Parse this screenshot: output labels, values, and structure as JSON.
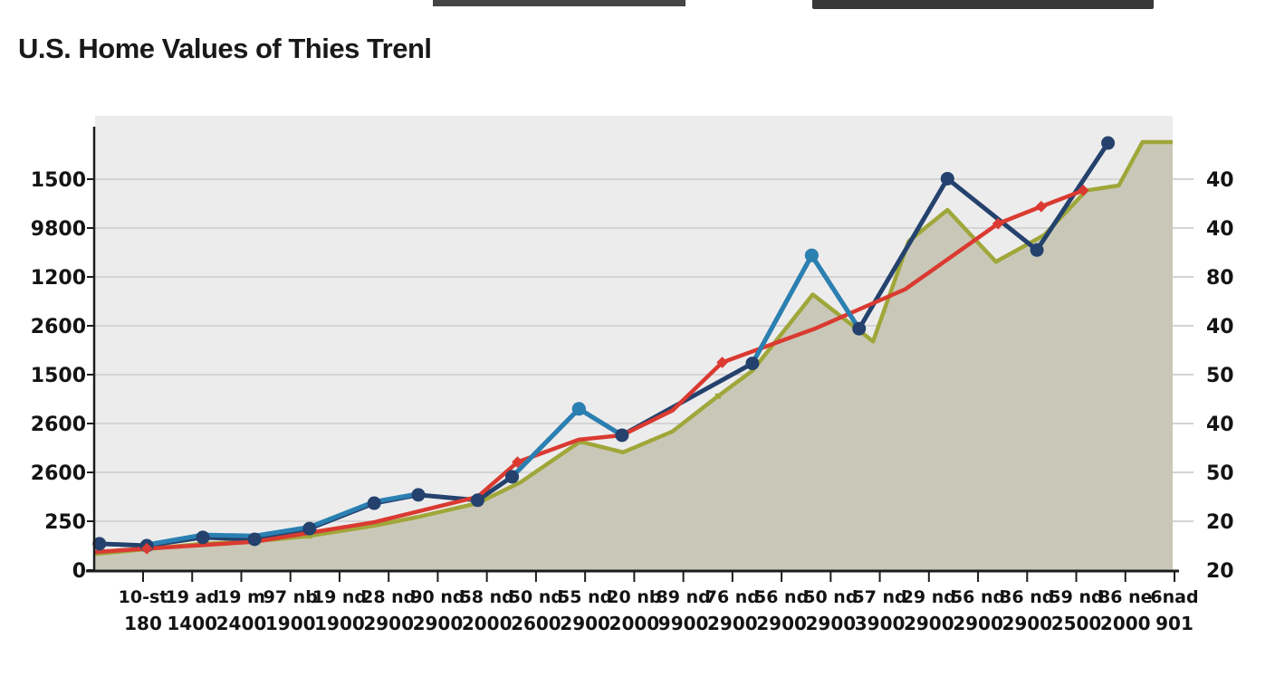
{
  "page": {
    "title": "U.S. Home Values of Thies Trenl"
  },
  "chart_data": {
    "type": "line",
    "title": "U.S. Home Values of Thies Trenl",
    "xlabel": "",
    "ylabel": "",
    "grid": true,
    "legend": "none",
    "plot_background": "#ececed",
    "grid_color": "#d4d4d4",
    "axis_color": "#1c1c1c",
    "label_color": "#141414",
    "y_axis_left_labels": [
      "1500",
      "9800",
      "1200",
      "2600",
      "1500",
      "2600",
      "2600",
      "250",
      "0"
    ],
    "y_axis_right_labels": [
      "40",
      "40",
      "80",
      "40",
      "50",
      "40",
      "50",
      "20",
      "20"
    ],
    "x_tick_labels_line1": [
      "10-st",
      "19 ad",
      "19 m",
      "97 nb",
      "19 nd",
      "28 nd",
      "90 nd",
      "58 nd",
      "50 nd",
      "55 nd",
      "20 nb",
      "89 nd",
      "76 nd",
      "56 nd",
      "50 nd",
      "57 nd",
      "29 nd",
      "56 nd",
      "36 nd",
      "59 nd",
      "86 ne",
      "6nad"
    ],
    "x_tick_labels_line2": [
      "180",
      "1400",
      "2400",
      "1900",
      "1900",
      "2900",
      "2900",
      "2000",
      "2600",
      "2900",
      "2000",
      "9900",
      "2900",
      "2900",
      "2900",
      "3900",
      "2900",
      "2900",
      "2900",
      "2500",
      "2000",
      "901"
    ],
    "layout_hints": {
      "note": "synthetic chart; series points given as [x = % across plot area, v = value units where one horizontal gridline = 10 units, v=0 at bottom axis]",
      "y_gridline_units": [
        10,
        20,
        30,
        40,
        50,
        60,
        70,
        80
      ],
      "x_tick_count": 22
    },
    "series": [
      {
        "name": "olive-area-series",
        "type": "area",
        "color": "#a0a73a",
        "fill": "#c9c8b8",
        "marker": "small-square",
        "marker_points": [
          4,
          7,
          9,
          12
        ],
        "points": [
          [
            0,
            3.3
          ],
          [
            4.8,
            4.3
          ],
          [
            10.0,
            5.4
          ],
          [
            14.8,
            5.9
          ],
          [
            19.9,
            7.0
          ],
          [
            25.9,
            9.1
          ],
          [
            30.0,
            10.9
          ],
          [
            35.5,
            13.7
          ],
          [
            39.5,
            18.0
          ],
          [
            45.0,
            26.3
          ],
          [
            49.0,
            24.1
          ],
          [
            53.6,
            28.4
          ],
          [
            57.8,
            35.6
          ],
          [
            61.0,
            40.8
          ],
          [
            66.6,
            56.4
          ],
          [
            72.2,
            46.8
          ],
          [
            75.5,
            67.3
          ],
          [
            79.1,
            73.7
          ],
          [
            83.6,
            63.1
          ],
          [
            88.1,
            68.6
          ],
          [
            92.0,
            77.7
          ],
          [
            95.0,
            78.7
          ],
          [
            97.2,
            87.6
          ],
          [
            100,
            87.6
          ]
        ]
      },
      {
        "name": "navy-dot-series",
        "type": "line",
        "color": "#24426d",
        "marker": "circle",
        "points": [
          [
            0.4,
            5.4
          ],
          [
            4.8,
            5.0
          ],
          [
            10.0,
            6.7
          ],
          [
            14.8,
            6.3
          ],
          [
            19.9,
            8.5
          ],
          [
            25.9,
            13.7
          ],
          [
            30.0,
            15.4
          ],
          [
            35.5,
            14.3
          ],
          [
            38.7,
            19.1
          ],
          [
            44.9,
            33.0
          ],
          [
            48.9,
            27.6
          ],
          [
            61.0,
            42.3
          ],
          [
            66.5,
            64.4
          ],
          [
            70.9,
            49.4
          ],
          [
            79.1,
            80.1
          ],
          [
            87.4,
            65.5
          ],
          [
            94.0,
            87.4
          ]
        ]
      },
      {
        "name": "red-diamond-series",
        "type": "line",
        "color": "#da3a31",
        "marker": "diamond",
        "marker_points": [
          1,
          5,
          9,
          12,
          13,
          14
        ],
        "points": [
          [
            0,
            3.7
          ],
          [
            4.8,
            4.4
          ],
          [
            14.8,
            5.8
          ],
          [
            25.9,
            9.8
          ],
          [
            35.5,
            15.0
          ],
          [
            39.2,
            22.1
          ],
          [
            44.9,
            26.7
          ],
          [
            48.9,
            27.6
          ],
          [
            53.6,
            32.7
          ],
          [
            58.2,
            42.5
          ],
          [
            66.9,
            49.5
          ],
          [
            75.2,
            57.5
          ],
          [
            83.8,
            70.9
          ],
          [
            87.8,
            74.4
          ],
          [
            91.7,
            77.7
          ]
        ]
      },
      {
        "name": "cyan-spike-series",
        "type": "line-segments",
        "color": "#2b80b2",
        "marker": "circle",
        "segments": [
          [
            [
              4.8,
              5.2
            ],
            [
              10.0,
              7.2
            ],
            [
              14.8,
              7.0
            ],
            [
              19.9,
              8.8
            ],
            [
              25.9,
              14.0
            ],
            [
              30.0,
              15.6
            ]
          ],
          [
            [
              38.7,
              19.1
            ],
            [
              44.9,
              33.0
            ],
            [
              48.9,
              27.6
            ]
          ],
          [
            [
              61.0,
              42.3
            ],
            [
              66.5,
              64.4
            ],
            [
              70.9,
              49.4
            ]
          ]
        ],
        "segment_peak_markers": [
          [
            44.9,
            33.0
          ],
          [
            66.5,
            64.4
          ]
        ]
      }
    ]
  }
}
